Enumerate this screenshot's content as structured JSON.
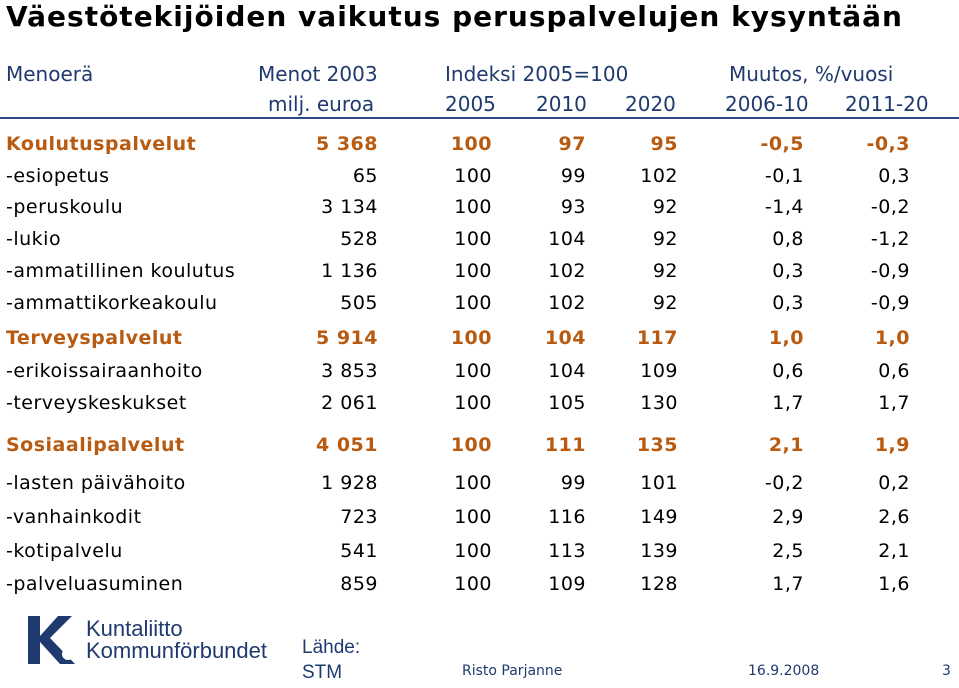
{
  "title": "Väestötekijöiden vaikutus peruspalvelujen kysyntään",
  "header": {
    "menoera": "Menoerä",
    "menot": "Menot 2003",
    "milj": "milj. euroa",
    "indeksi": "Indeksi 2005=100",
    "muutos": "Muutos, %/vuosi",
    "y2005": "2005",
    "y2010": "2010",
    "y2020": "2020",
    "p1": "2006-10",
    "p2": "2011-20"
  },
  "rows": [
    {
      "label": "Koulutuspalvelut",
      "menot": "5 368",
      "i2005": "100",
      "i2010": "97",
      "i2020": "95",
      "m1": "-0,5",
      "m2": "-0,3",
      "bold": true
    },
    {
      "label": "-esiopetus",
      "menot": "65",
      "i2005": "100",
      "i2010": "99",
      "i2020": "102",
      "m1": "-0,1",
      "m2": "0,3"
    },
    {
      "label": "-peruskoulu",
      "menot": "3 134",
      "i2005": "100",
      "i2010": "93",
      "i2020": "92",
      "m1": "-1,4",
      "m2": "-0,2"
    },
    {
      "label": "-lukio",
      "menot": "528",
      "i2005": "100",
      "i2010": "104",
      "i2020": "92",
      "m1": "0,8",
      "m2": "-1,2"
    },
    {
      "label": "-ammatillinen koulutus",
      "menot": "1 136",
      "i2005": "100",
      "i2010": "102",
      "i2020": "92",
      "m1": "0,3",
      "m2": "-0,9"
    },
    {
      "label": "-ammattikorkeakoulu",
      "menot": "505",
      "i2005": "100",
      "i2010": "102",
      "i2020": "92",
      "m1": "0,3",
      "m2": "-0,9"
    },
    {
      "label": "Terveyspalvelut",
      "menot": "5 914",
      "i2005": "100",
      "i2010": "104",
      "i2020": "117",
      "m1": "1,0",
      "m2": "1,0",
      "bold": true
    },
    {
      "label": "-erikoissairaanhoito",
      "menot": "3 853",
      "i2005": "100",
      "i2010": "104",
      "i2020": "109",
      "m1": "0,6",
      "m2": "0,6"
    },
    {
      "label": "-terveyskeskukset",
      "menot": "2 061",
      "i2005": "100",
      "i2010": "105",
      "i2020": "130",
      "m1": "1,7",
      "m2": "1,7"
    },
    {
      "label": "Sosiaalipalvelut",
      "menot": "4 051",
      "i2005": "100",
      "i2010": "111",
      "i2020": "135",
      "m1": "2,1",
      "m2": "1,9",
      "bold": true
    },
    {
      "label": "-lasten päivähoito",
      "menot": "1 928",
      "i2005": "100",
      "i2010": "99",
      "i2020": "101",
      "m1": "-0,2",
      "m2": "0,2"
    },
    {
      "label": "-vanhainkodit",
      "menot": "723",
      "i2005": "100",
      "i2010": "116",
      "i2020": "149",
      "m1": "2,9",
      "m2": "2,6"
    },
    {
      "label": "-kotipalvelu",
      "menot": "541",
      "i2005": "100",
      "i2010": "113",
      "i2020": "139",
      "m1": "2,5",
      "m2": "2,1"
    },
    {
      "label": "-palveluasuminen",
      "menot": "859",
      "i2005": "100",
      "i2010": "109",
      "i2020": "128",
      "m1": "1,7",
      "m2": "1,6"
    }
  ],
  "logo": {
    "line1": "Kuntaliitto",
    "line2": "Kommunförbundet",
    "icon": "kuntaliitto-logo-icon"
  },
  "source": {
    "line1": "Lähde:",
    "line2": "STM"
  },
  "footer": {
    "author": "Risto Parjanne",
    "date": "16.9.2008",
    "page": "3"
  },
  "colors": {
    "accent": "#b85a10",
    "header": "#1f3a6e",
    "rule": "#2a4a86"
  }
}
